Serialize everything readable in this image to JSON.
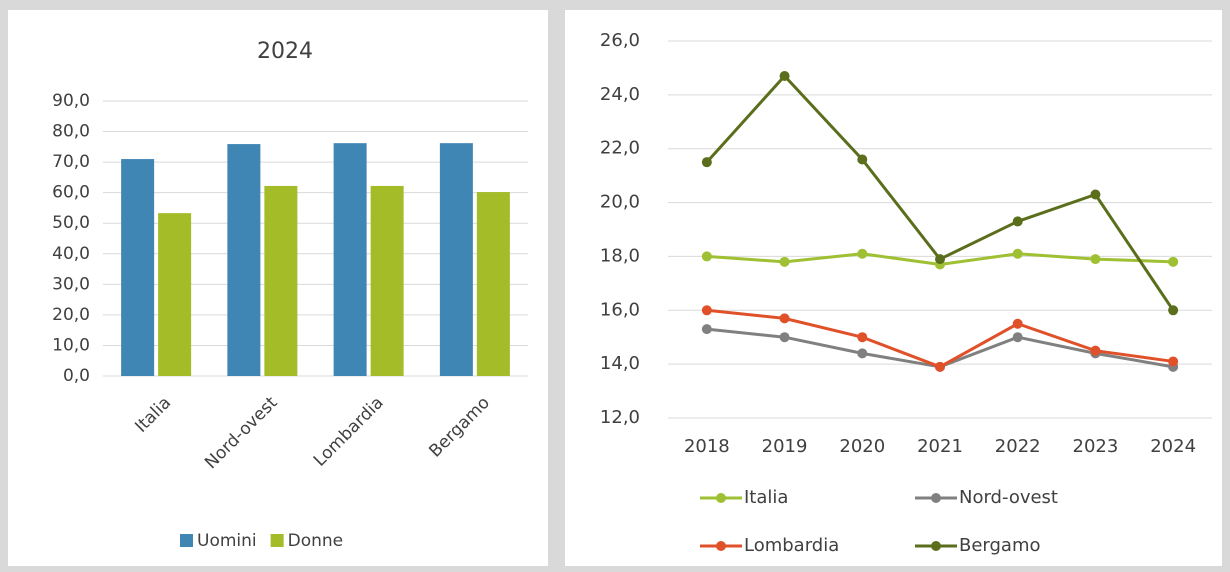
{
  "chart_data": [
    {
      "type": "bar",
      "title": "2024",
      "categories": [
        "Italia",
        "Nord-ovest",
        "Lombardia",
        "Bergamo"
      ],
      "series": [
        {
          "name": "Uomini",
          "color": "#3f86b4",
          "values": [
            71.0,
            75.9,
            76.2,
            76.2
          ]
        },
        {
          "name": "Donne",
          "color": "#a5bc29",
          "values": [
            53.3,
            62.2,
            62.2,
            60.2
          ]
        }
      ],
      "ylim": [
        0,
        90
      ],
      "yticks": [
        {
          "value": 0,
          "label": "0,0"
        },
        {
          "value": 10,
          "label": "10,0"
        },
        {
          "value": 20,
          "label": "20,0"
        },
        {
          "value": 30,
          "label": "30,0"
        },
        {
          "value": 40,
          "label": "40,0"
        },
        {
          "value": 50,
          "label": "50,0"
        },
        {
          "value": 60,
          "label": "60,0"
        },
        {
          "value": 70,
          "label": "70,0"
        },
        {
          "value": 80,
          "label": "80,0"
        },
        {
          "value": 90,
          "label": "90,0"
        }
      ],
      "grid": true,
      "legend": "bottom"
    },
    {
      "type": "line",
      "categories": [
        "2018",
        "2019",
        "2020",
        "2021",
        "2022",
        "2023",
        "2024"
      ],
      "series": [
        {
          "name": "Italia",
          "color": "#9fc033",
          "values": [
            18.0,
            17.8,
            18.1,
            17.7,
            18.1,
            17.9,
            17.8
          ]
        },
        {
          "name": "Nord-ovest",
          "color": "#808080",
          "values": [
            15.3,
            15.0,
            14.4,
            13.9,
            15.0,
            14.4,
            13.9
          ]
        },
        {
          "name": "Lombardia",
          "color": "#e0512a",
          "values": [
            16.0,
            15.7,
            15.0,
            13.9,
            15.5,
            14.5,
            14.1
          ]
        },
        {
          "name": "Bergamo",
          "color": "#5a6e1c",
          "values": [
            21.5,
            24.7,
            21.6,
            17.9,
            19.3,
            20.3,
            16.0
          ]
        }
      ],
      "ylim": [
        12,
        26
      ],
      "yticks": [
        {
          "value": 12,
          "label": "12,0"
        },
        {
          "value": 14,
          "label": "14,0"
        },
        {
          "value": 16,
          "label": "16,0"
        },
        {
          "value": 18,
          "label": "18,0"
        },
        {
          "value": 20,
          "label": "20,0"
        },
        {
          "value": 22,
          "label": "22,0"
        },
        {
          "value": 24,
          "label": "24,0"
        },
        {
          "value": 26,
          "label": "26,0"
        }
      ],
      "grid": true,
      "legend": "bottom"
    }
  ]
}
